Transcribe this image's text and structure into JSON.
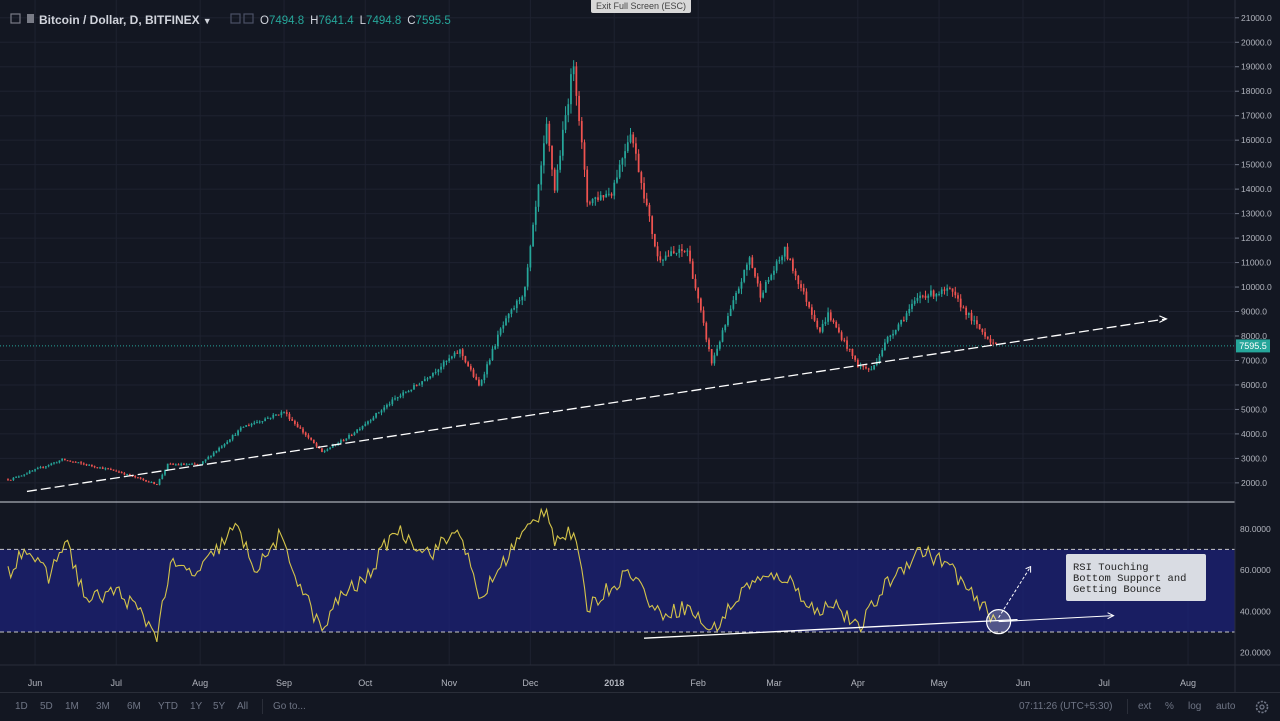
{
  "header": {
    "symbol": "Bitcoin / Dollar, D, BITFINEX",
    "open_label": "O",
    "open": "7494.8",
    "high_label": "H",
    "high": "7641.4",
    "low_label": "L",
    "low": "7494.8",
    "close_label": "C",
    "close": "7595.5",
    "tooltip": "Exit Full Screen (ESC)"
  },
  "colors": {
    "background": "#131722",
    "up": "#26a69a",
    "down": "#ef5350",
    "rsi_line": "#d4c44a",
    "rsi_band": "#1c2178",
    "trendline": "#ffffff",
    "price_line": "#26a69a"
  },
  "chart_data": [
    {
      "type": "candlestick",
      "price_axis": [
        "21000.0",
        "20000.0",
        "19000.0",
        "18000.0",
        "17000.0",
        "16000.0",
        "15000.0",
        "14000.0",
        "13000.0",
        "12000.0",
        "11000.0",
        "10000.0",
        "9000.0",
        "8000.0",
        "7000.0",
        "6000.0",
        "5000.0",
        "4000.0",
        "3000.0",
        "2000.0"
      ],
      "ylim": [
        1300,
        21400
      ],
      "last_price_label": "7595.5",
      "last_price": 7595.5,
      "x_ticks": [
        "Jun",
        "Jul",
        "Aug",
        "Sep",
        "Oct",
        "Nov",
        "Dec",
        "2018",
        "Feb",
        "Mar",
        "Apr",
        "May",
        "Jun",
        "Jul",
        "Aug"
      ],
      "trend_anchors": [
        {
          "date": "2017-05-23",
          "close": 2150
        },
        {
          "date": "2017-06-11",
          "close": 2950
        },
        {
          "date": "2017-07-01",
          "close": 2480
        },
        {
          "date": "2017-07-16",
          "close": 1940
        },
        {
          "date": "2017-07-20",
          "close": 2750
        },
        {
          "date": "2017-08-01",
          "close": 2750
        },
        {
          "date": "2017-08-17",
          "close": 4300
        },
        {
          "date": "2017-09-01",
          "close": 4900
        },
        {
          "date": "2017-09-15",
          "close": 3250
        },
        {
          "date": "2017-09-25",
          "close": 3900
        },
        {
          "date": "2017-10-12",
          "close": 5430
        },
        {
          "date": "2017-10-20",
          "close": 5990
        },
        {
          "date": "2017-11-05",
          "close": 7400
        },
        {
          "date": "2017-11-12",
          "close": 5950
        },
        {
          "date": "2017-11-20",
          "close": 8250
        },
        {
          "date": "2017-11-29",
          "close": 9900
        },
        {
          "date": "2017-12-07",
          "close": 16500
        },
        {
          "date": "2017-12-10",
          "close": 14000
        },
        {
          "date": "2017-12-17",
          "close": 19200
        },
        {
          "date": "2017-12-22",
          "close": 13500
        },
        {
          "date": "2017-12-31",
          "close": 13900
        },
        {
          "date": "2018-01-07",
          "close": 16400
        },
        {
          "date": "2018-01-17",
          "close": 11200
        },
        {
          "date": "2018-01-28",
          "close": 11500
        },
        {
          "date": "2018-02-06",
          "close": 6900
        },
        {
          "date": "2018-02-20",
          "close": 11200
        },
        {
          "date": "2018-02-24",
          "close": 9700
        },
        {
          "date": "2018-03-05",
          "close": 11500
        },
        {
          "date": "2018-03-18",
          "close": 8200
        },
        {
          "date": "2018-03-21",
          "close": 8900
        },
        {
          "date": "2018-04-01",
          "close": 6800
        },
        {
          "date": "2018-04-06",
          "close": 6600
        },
        {
          "date": "2018-04-12",
          "close": 7900
        },
        {
          "date": "2018-04-24",
          "close": 9650
        },
        {
          "date": "2018-05-05",
          "close": 9850
        },
        {
          "date": "2018-05-15",
          "close": 8400
        },
        {
          "date": "2018-05-22",
          "close": 7595
        }
      ],
      "trendline_price": [
        {
          "date": "2017-05-29",
          "price": 1650
        },
        {
          "date": "2018-07-24",
          "price": 8700
        }
      ]
    },
    {
      "type": "line",
      "name": "RSI",
      "y_axis": [
        "80.0000",
        "60.0000",
        "40.0000",
        "20.0000"
      ],
      "ylim": [
        14,
        92
      ],
      "bands": [
        30,
        70
      ],
      "anchors": [
        {
          "date": "2017-05-23",
          "rsi": 60
        },
        {
          "date": "2017-05-28",
          "rsi": 72
        },
        {
          "date": "2017-06-06",
          "rsi": 56
        },
        {
          "date": "2017-06-12",
          "rsi": 75
        },
        {
          "date": "2017-06-20",
          "rsi": 45
        },
        {
          "date": "2017-07-01",
          "rsi": 50
        },
        {
          "date": "2017-07-08",
          "rsi": 42
        },
        {
          "date": "2017-07-16",
          "rsi": 29
        },
        {
          "date": "2017-07-21",
          "rsi": 62
        },
        {
          "date": "2017-07-31",
          "rsi": 58
        },
        {
          "date": "2017-08-14",
          "rsi": 81
        },
        {
          "date": "2017-08-22",
          "rsi": 60
        },
        {
          "date": "2017-08-30",
          "rsi": 76
        },
        {
          "date": "2017-09-08",
          "rsi": 50
        },
        {
          "date": "2017-09-15",
          "rsi": 30
        },
        {
          "date": "2017-09-22",
          "rsi": 48
        },
        {
          "date": "2017-10-01",
          "rsi": 55
        },
        {
          "date": "2017-10-12",
          "rsi": 80
        },
        {
          "date": "2017-10-25",
          "rsi": 68
        },
        {
          "date": "2017-11-05",
          "rsi": 80
        },
        {
          "date": "2017-11-12",
          "rsi": 45
        },
        {
          "date": "2017-11-25",
          "rsi": 72
        },
        {
          "date": "2017-12-07",
          "rsi": 91
        },
        {
          "date": "2017-12-10",
          "rsi": 75
        },
        {
          "date": "2017-12-17",
          "rsi": 78
        },
        {
          "date": "2017-12-22",
          "rsi": 42
        },
        {
          "date": "2018-01-07",
          "rsi": 60
        },
        {
          "date": "2018-01-17",
          "rsi": 39
        },
        {
          "date": "2018-01-28",
          "rsi": 42
        },
        {
          "date": "2018-02-06",
          "rsi": 30
        },
        {
          "date": "2018-02-20",
          "rsi": 54
        },
        {
          "date": "2018-03-05",
          "rsi": 57
        },
        {
          "date": "2018-03-18",
          "rsi": 38
        },
        {
          "date": "2018-03-22",
          "rsi": 46
        },
        {
          "date": "2018-04-01",
          "rsi": 31
        },
        {
          "date": "2018-04-12",
          "rsi": 54
        },
        {
          "date": "2018-04-24",
          "rsi": 70
        },
        {
          "date": "2018-05-05",
          "rsi": 62
        },
        {
          "date": "2018-05-15",
          "rsi": 44
        },
        {
          "date": "2018-05-22",
          "rsi": 37
        }
      ],
      "trendline_rsi": [
        {
          "date": "2018-01-12",
          "rsi": 27
        },
        {
          "date": "2018-05-30",
          "rsi": 36
        }
      ],
      "annotation": "RSI Touching\nBottom Support and\nGetting Bounce"
    }
  ],
  "bottom_bar": {
    "ranges": [
      "1D",
      "5D",
      "1M",
      "3M",
      "6M",
      "YTD",
      "1Y",
      "5Y",
      "All"
    ],
    "goto": "Go to...",
    "time": "07:11:26 (UTC+5:30)",
    "ext": "ext",
    "percent": "%",
    "log": "log",
    "auto": "auto",
    "settings_icon": "gear-icon"
  }
}
